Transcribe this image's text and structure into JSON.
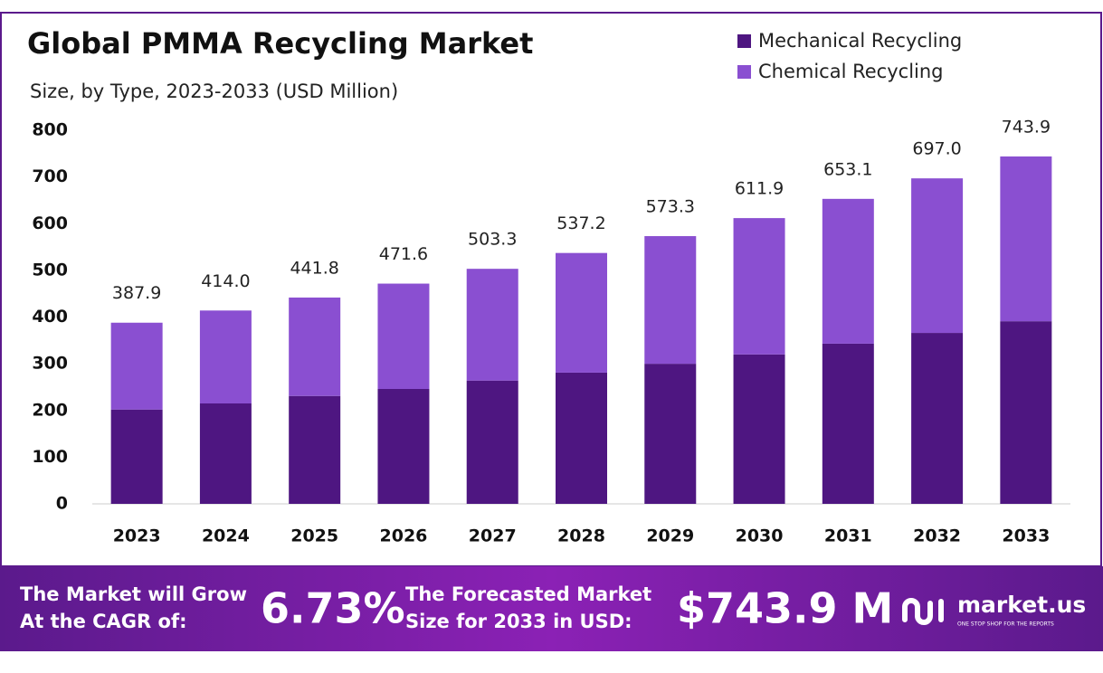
{
  "chart_data": {
    "type": "stacked_bar",
    "title": "Global PMMA Recycling Market",
    "subtitle": "Size, by Type, 2023-2033 (USD Million)",
    "categories": [
      "2023",
      "2024",
      "2025",
      "2026",
      "2027",
      "2028",
      "2029",
      "2030",
      "2031",
      "2032",
      "2033"
    ],
    "series": [
      {
        "name": "Mechanical Recycling",
        "color": "#4e1681",
        "values": [
          202,
          215,
          231,
          246,
          264,
          281,
          300,
          320,
          343,
          366,
          391
        ]
      },
      {
        "name": "Chemical Recycling",
        "color": "#8a4fd1",
        "values": [
          185.9,
          199.0,
          210.8,
          225.6,
          239.3,
          256.2,
          273.3,
          291.9,
          310.1,
          331.0,
          352.9
        ]
      }
    ],
    "totals": [
      387.9,
      414.0,
      441.8,
      471.6,
      503.3,
      537.2,
      573.3,
      611.9,
      653.1,
      697.0,
      743.9
    ],
    "total_labels": [
      "387.9",
      "414.0",
      "441.8",
      "471.6",
      "503.3",
      "537.2",
      "573.3",
      "611.9",
      "653.1",
      "697.0",
      "743.9"
    ],
    "ylim": [
      0,
      800
    ],
    "yticks": [
      0,
      100,
      200,
      300,
      400,
      500,
      600,
      700,
      800
    ],
    "grid": false,
    "legend": "top-right"
  },
  "footer": {
    "cagr_text_1": "The Market will Grow",
    "cagr_text_2": "At the CAGR of:",
    "cagr": "6.73%",
    "forecast_text_1": "The Forecasted Market",
    "forecast_text_2": "Size for 2033 in USD:",
    "forecast": "$743.9 M",
    "brand": "market.us",
    "tagline": "ONE STOP SHOP FOR THE REPORTS"
  }
}
